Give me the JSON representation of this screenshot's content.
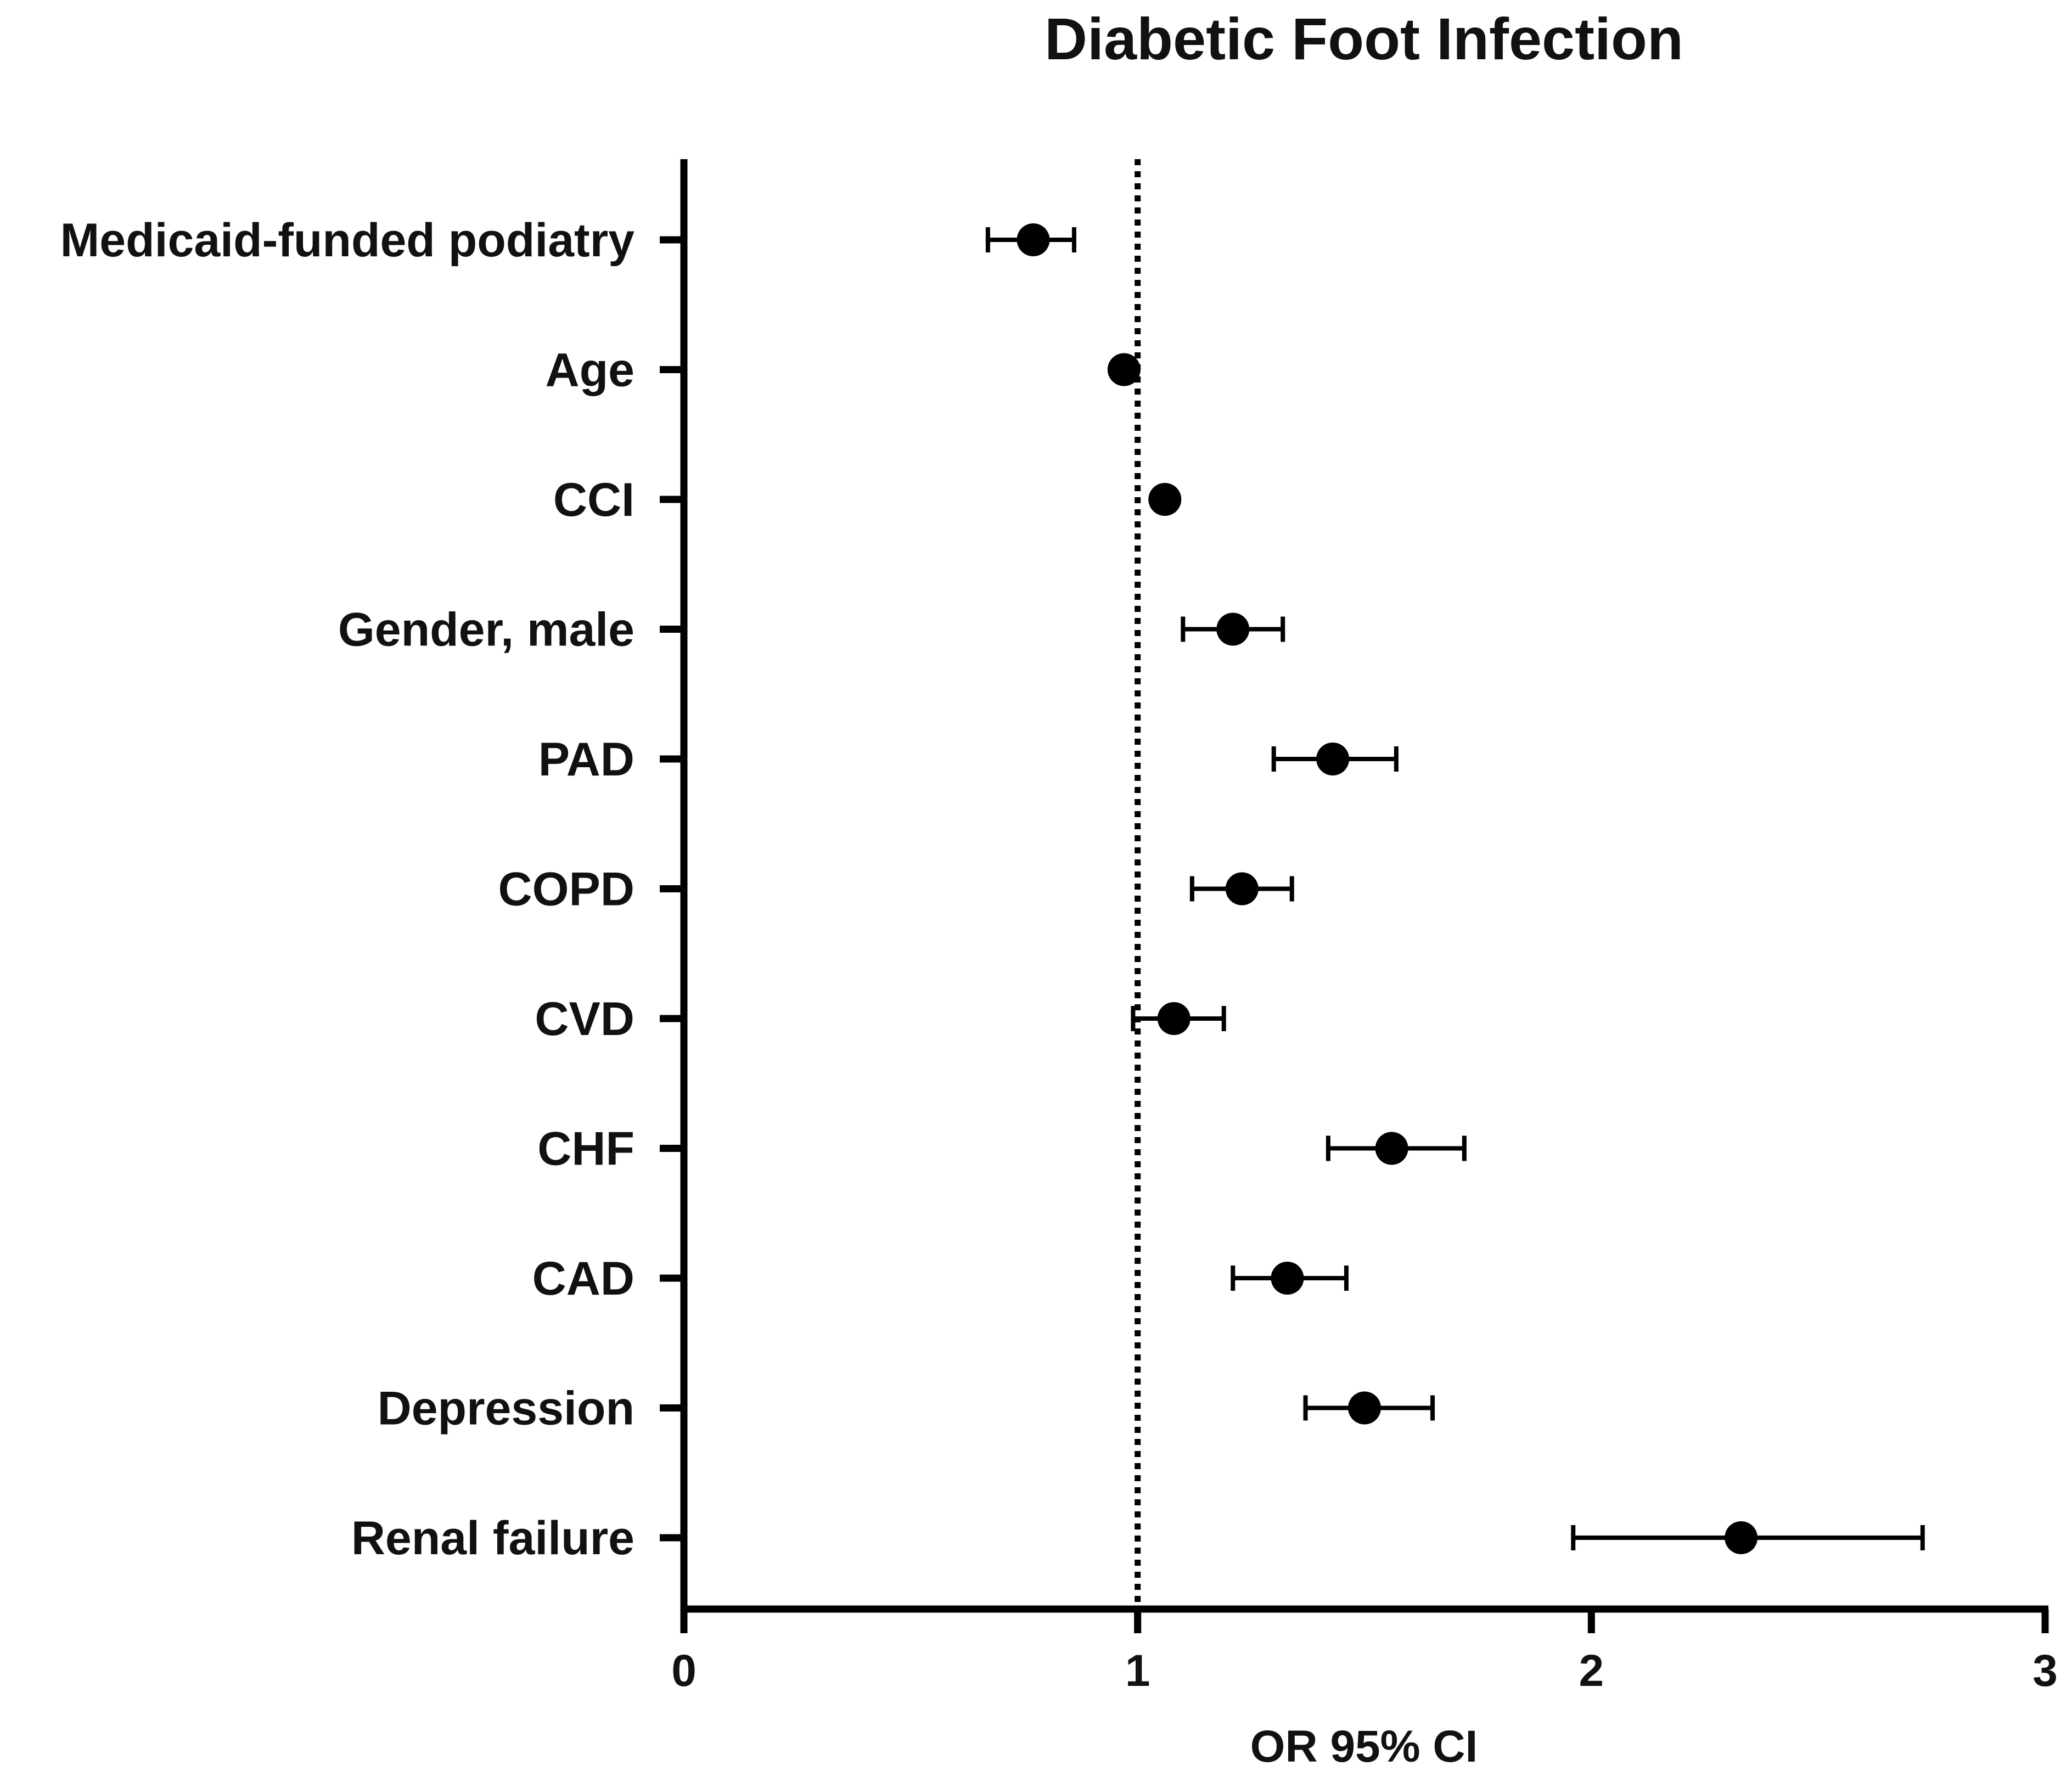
{
  "chart_data": {
    "type": "forest",
    "title": "Diabetic Foot Infection",
    "xlabel": "OR 95% CI",
    "ylabel": "",
    "xlim": [
      0,
      3
    ],
    "x_ticks": [
      "0",
      "1",
      "2",
      "3"
    ],
    "reference_line": 1,
    "categories": [
      "Medicaid-funded podiatry",
      "Age",
      "CCI",
      "Gender, male",
      "PAD",
      "COPD",
      "CVD",
      "CHF",
      "CAD",
      "Depression",
      "Renal failure"
    ],
    "estimates": [
      0.77,
      0.97,
      1.06,
      1.21,
      1.43,
      1.23,
      1.08,
      1.56,
      1.33,
      1.5,
      2.33
    ],
    "ci_lower": [
      0.67,
      0.96,
      1.05,
      1.1,
      1.3,
      1.12,
      0.99,
      1.42,
      1.21,
      1.37,
      1.96
    ],
    "ci_upper": [
      0.86,
      0.98,
      1.07,
      1.32,
      1.57,
      1.34,
      1.19,
      1.72,
      1.46,
      1.65,
      2.73
    ],
    "grid": false,
    "legend": "none"
  }
}
